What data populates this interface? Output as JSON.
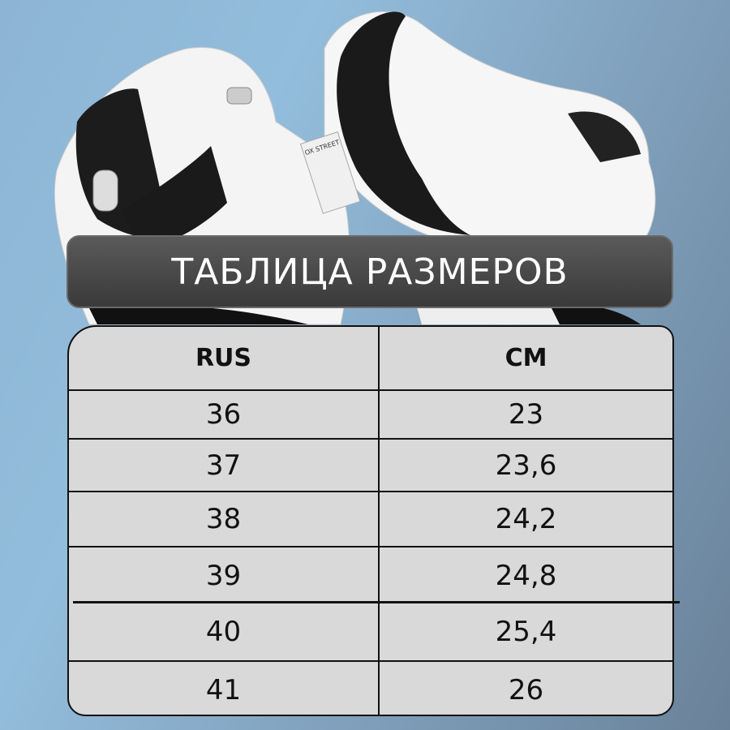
{
  "title": "ТАБЛИЦА РАЗМЕРОВ",
  "table": {
    "headers": [
      "RUS",
      "CM"
    ],
    "rows": [
      [
        "36",
        "23"
      ],
      [
        "37",
        "23,6"
      ],
      [
        "38",
        "24,2"
      ],
      [
        "39",
        "24,8"
      ],
      [
        "40",
        "25,4"
      ],
      [
        "41",
        "26"
      ]
    ]
  },
  "shoe_tag": "OX STREET",
  "colors": {
    "banner": "#444444",
    "table_bg": "#d9d9d9",
    "background": "#8db4d4"
  }
}
